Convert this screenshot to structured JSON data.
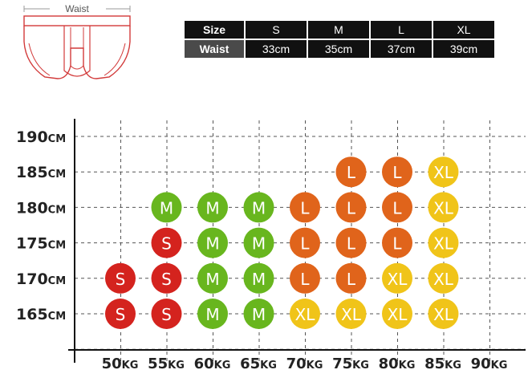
{
  "diagram": {
    "waist_label": "Waist"
  },
  "size_table": {
    "size_header": "Size",
    "waist_header": "Waist",
    "sizes": [
      "S",
      "M",
      "L",
      "XL"
    ],
    "waists": [
      "33cm",
      "35cm",
      "37cm",
      "39cm"
    ]
  },
  "colors": {
    "S": "#d4231e",
    "M": "#68b61e",
    "L": "#e0641b",
    "XL": "#f0c419"
  },
  "chart_data": {
    "type": "table",
    "x_tick_labels": [
      "50KG",
      "55KG",
      "60KG",
      "65KG",
      "70KG",
      "75KG",
      "80KG",
      "85KG",
      "90KG"
    ],
    "y_tick_labels": [
      "190CM",
      "185CM",
      "180CM",
      "175CM",
      "170CM",
      "165CM"
    ],
    "x_values": [
      50,
      55,
      60,
      65,
      70,
      75,
      80,
      85,
      90
    ],
    "y_values": [
      190,
      185,
      180,
      175,
      170,
      165
    ],
    "grid": true,
    "cells": [
      {
        "weight": 75,
        "height": 185,
        "size": "L"
      },
      {
        "weight": 80,
        "height": 185,
        "size": "L"
      },
      {
        "weight": 85,
        "height": 185,
        "size": "XL"
      },
      {
        "weight": 55,
        "height": 180,
        "size": "M"
      },
      {
        "weight": 60,
        "height": 180,
        "size": "M"
      },
      {
        "weight": 65,
        "height": 180,
        "size": "M"
      },
      {
        "weight": 70,
        "height": 180,
        "size": "L"
      },
      {
        "weight": 75,
        "height": 180,
        "size": "L"
      },
      {
        "weight": 80,
        "height": 180,
        "size": "L"
      },
      {
        "weight": 85,
        "height": 180,
        "size": "XL"
      },
      {
        "weight": 55,
        "height": 175,
        "size": "S"
      },
      {
        "weight": 60,
        "height": 175,
        "size": "M"
      },
      {
        "weight": 65,
        "height": 175,
        "size": "M"
      },
      {
        "weight": 70,
        "height": 175,
        "size": "L"
      },
      {
        "weight": 75,
        "height": 175,
        "size": "L"
      },
      {
        "weight": 80,
        "height": 175,
        "size": "L"
      },
      {
        "weight": 85,
        "height": 175,
        "size": "XL"
      },
      {
        "weight": 50,
        "height": 170,
        "size": "S"
      },
      {
        "weight": 55,
        "height": 170,
        "size": "S"
      },
      {
        "weight": 60,
        "height": 170,
        "size": "M"
      },
      {
        "weight": 65,
        "height": 170,
        "size": "M"
      },
      {
        "weight": 70,
        "height": 170,
        "size": "L"
      },
      {
        "weight": 75,
        "height": 170,
        "size": "L"
      },
      {
        "weight": 80,
        "height": 170,
        "size": "XL"
      },
      {
        "weight": 85,
        "height": 170,
        "size": "XL"
      },
      {
        "weight": 50,
        "height": 165,
        "size": "S"
      },
      {
        "weight": 55,
        "height": 165,
        "size": "S"
      },
      {
        "weight": 60,
        "height": 165,
        "size": "M"
      },
      {
        "weight": 65,
        "height": 165,
        "size": "M"
      },
      {
        "weight": 70,
        "height": 165,
        "size": "XL"
      },
      {
        "weight": 75,
        "height": 165,
        "size": "XL"
      },
      {
        "weight": 80,
        "height": 165,
        "size": "XL"
      },
      {
        "weight": 85,
        "height": 165,
        "size": "XL"
      }
    ]
  }
}
